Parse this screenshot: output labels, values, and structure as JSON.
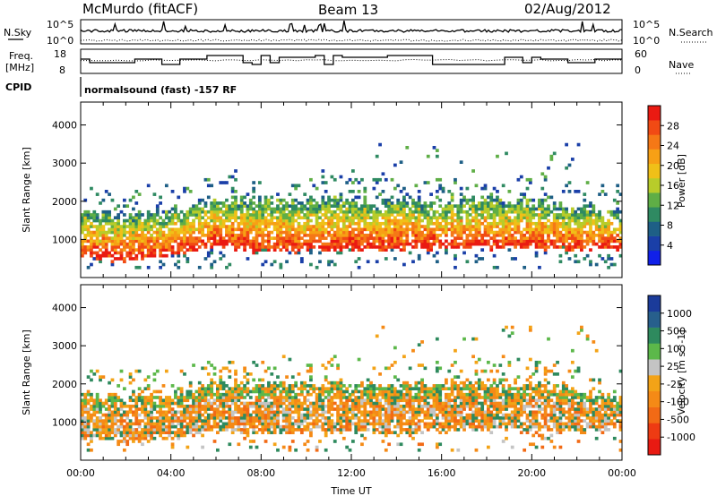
{
  "header": {
    "station": "McMurdo (fitACF)",
    "beam": "Beam 13",
    "date": "02/Aug/2012"
  },
  "noise_panel": {
    "left_label": "N.Sky",
    "right_label": "N.Search",
    "left_ticks": [
      "10^5",
      "10^0"
    ],
    "right_ticks": [
      "10^5",
      "10^0"
    ]
  },
  "freq_panel": {
    "left_label_1": "Freq.",
    "left_label_2": "[MHz]",
    "left_ticks": [
      "18",
      "8"
    ],
    "right_label": "Nave",
    "right_ticks": [
      "60",
      "0"
    ]
  },
  "cpid_panel": {
    "label": "CPID",
    "text": "normalsound (fast) -157 RF"
  },
  "power_colorbar": {
    "label": "Power [dB]",
    "ticks": [
      "28",
      "24",
      "20",
      "16",
      "12",
      "8",
      "4"
    ],
    "colors": [
      "#1020e8",
      "#1a3fa8",
      "#1e5f86",
      "#2f8a62",
      "#5fae46",
      "#b8cc2a",
      "#f0c018",
      "#f7a015",
      "#f57816",
      "#f14a14",
      "#ea1a12"
    ]
  },
  "velocity_colorbar": {
    "label": "Velocity [m s^-1]",
    "ticks": [
      "1000",
      "500",
      "100",
      "25",
      "-25",
      "-100",
      "-500",
      "-1000"
    ],
    "colors": [
      "#1b3b9a",
      "#275f8c",
      "#2e8a5e",
      "#5cb84a",
      "#c4c4c4",
      "#f3a317",
      "#f58a16",
      "#f26a15",
      "#ee3b13",
      "#e81a12"
    ]
  },
  "chart_data": [
    {
      "type": "heatmap",
      "name": "power",
      "ylabel": "Slant Range [km]",
      "ylim": [
        0,
        4600
      ],
      "yticks": [
        1000,
        2000,
        3000,
        4000
      ],
      "x_unit": "hours UT",
      "xlim": [
        0,
        24
      ],
      "scatter_band": {
        "x_hours": [
          0,
          2,
          4,
          6,
          8,
          10,
          12,
          14,
          16,
          18,
          20,
          22,
          24
        ],
        "lower_km": [
          550,
          450,
          600,
          800,
          700,
          700,
          750,
          700,
          800,
          800,
          800,
          750,
          800
        ],
        "upper_km": [
          1750,
          1600,
          1750,
          2050,
          2000,
          2000,
          2000,
          2000,
          2000,
          2050,
          1950,
          1900,
          1600
        ]
      }
    },
    {
      "type": "heatmap",
      "name": "velocity",
      "ylabel": "Slant Range [km]",
      "ylim": [
        0,
        4600
      ],
      "yticks": [
        1000,
        2000,
        3000,
        4000
      ],
      "xlabel": "Time UT",
      "xlim": [
        0,
        24
      ],
      "xticks": [
        "00:00",
        "04:00",
        "08:00",
        "12:00",
        "16:00",
        "20:00",
        "00:00"
      ],
      "scatter_band": {
        "x_hours": [
          0,
          2,
          4,
          6,
          8,
          10,
          12,
          14,
          16,
          18,
          20,
          22,
          24
        ],
        "lower_km": [
          550,
          450,
          600,
          800,
          700,
          700,
          750,
          700,
          800,
          800,
          800,
          750,
          800
        ],
        "upper_km": [
          1750,
          1600,
          1750,
          2050,
          2000,
          2000,
          2000,
          2000,
          2000,
          2050,
          1950,
          1900,
          1600
        ]
      }
    }
  ]
}
